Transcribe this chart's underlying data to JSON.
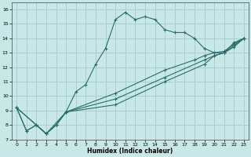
{
  "xlabel": "Humidex (Indice chaleur)",
  "ylabel": "",
  "bg_color": "#c8e8e8",
  "line_color": "#2a6b6b",
  "grid_color": "#aacece",
  "xlim": [
    -0.5,
    23.5
  ],
  "ylim": [
    7,
    16.5
  ],
  "xticks": [
    0,
    1,
    2,
    3,
    4,
    5,
    6,
    7,
    8,
    9,
    10,
    11,
    12,
    13,
    14,
    15,
    16,
    17,
    18,
    19,
    20,
    21,
    22,
    23
  ],
  "yticks": [
    7,
    8,
    9,
    10,
    11,
    12,
    13,
    14,
    15,
    16
  ],
  "line1_x": [
    0,
    1,
    2,
    3,
    4,
    5,
    6,
    7,
    8,
    9,
    10,
    11,
    12,
    13,
    14,
    15,
    16,
    17,
    18,
    19,
    20,
    21,
    22,
    23
  ],
  "line1_y": [
    9.2,
    7.6,
    8.0,
    7.4,
    8.0,
    8.9,
    10.3,
    10.8,
    12.2,
    13.3,
    15.3,
    15.8,
    15.3,
    15.5,
    15.3,
    14.6,
    14.4,
    14.4,
    14.0,
    13.3,
    13.0,
    13.0,
    13.7,
    14.0
  ],
  "line2_x": [
    0,
    1,
    2,
    3,
    4,
    5,
    10,
    15,
    18,
    19,
    20,
    21,
    22,
    23
  ],
  "line2_y": [
    9.2,
    7.6,
    8.0,
    7.4,
    8.0,
    8.9,
    10.2,
    11.8,
    12.5,
    12.8,
    13.0,
    13.1,
    13.6,
    14.0
  ],
  "line3_x": [
    0,
    3,
    4,
    5,
    10,
    15,
    19,
    20,
    21,
    22,
    23
  ],
  "line3_y": [
    9.2,
    7.4,
    8.0,
    8.9,
    9.8,
    11.3,
    12.5,
    12.8,
    13.0,
    13.5,
    14.0
  ],
  "line4_x": [
    0,
    3,
    5,
    10,
    15,
    19,
    20,
    21,
    22,
    23
  ],
  "line4_y": [
    9.2,
    7.4,
    8.9,
    9.4,
    11.0,
    12.2,
    12.8,
    13.0,
    13.4,
    14.0
  ]
}
